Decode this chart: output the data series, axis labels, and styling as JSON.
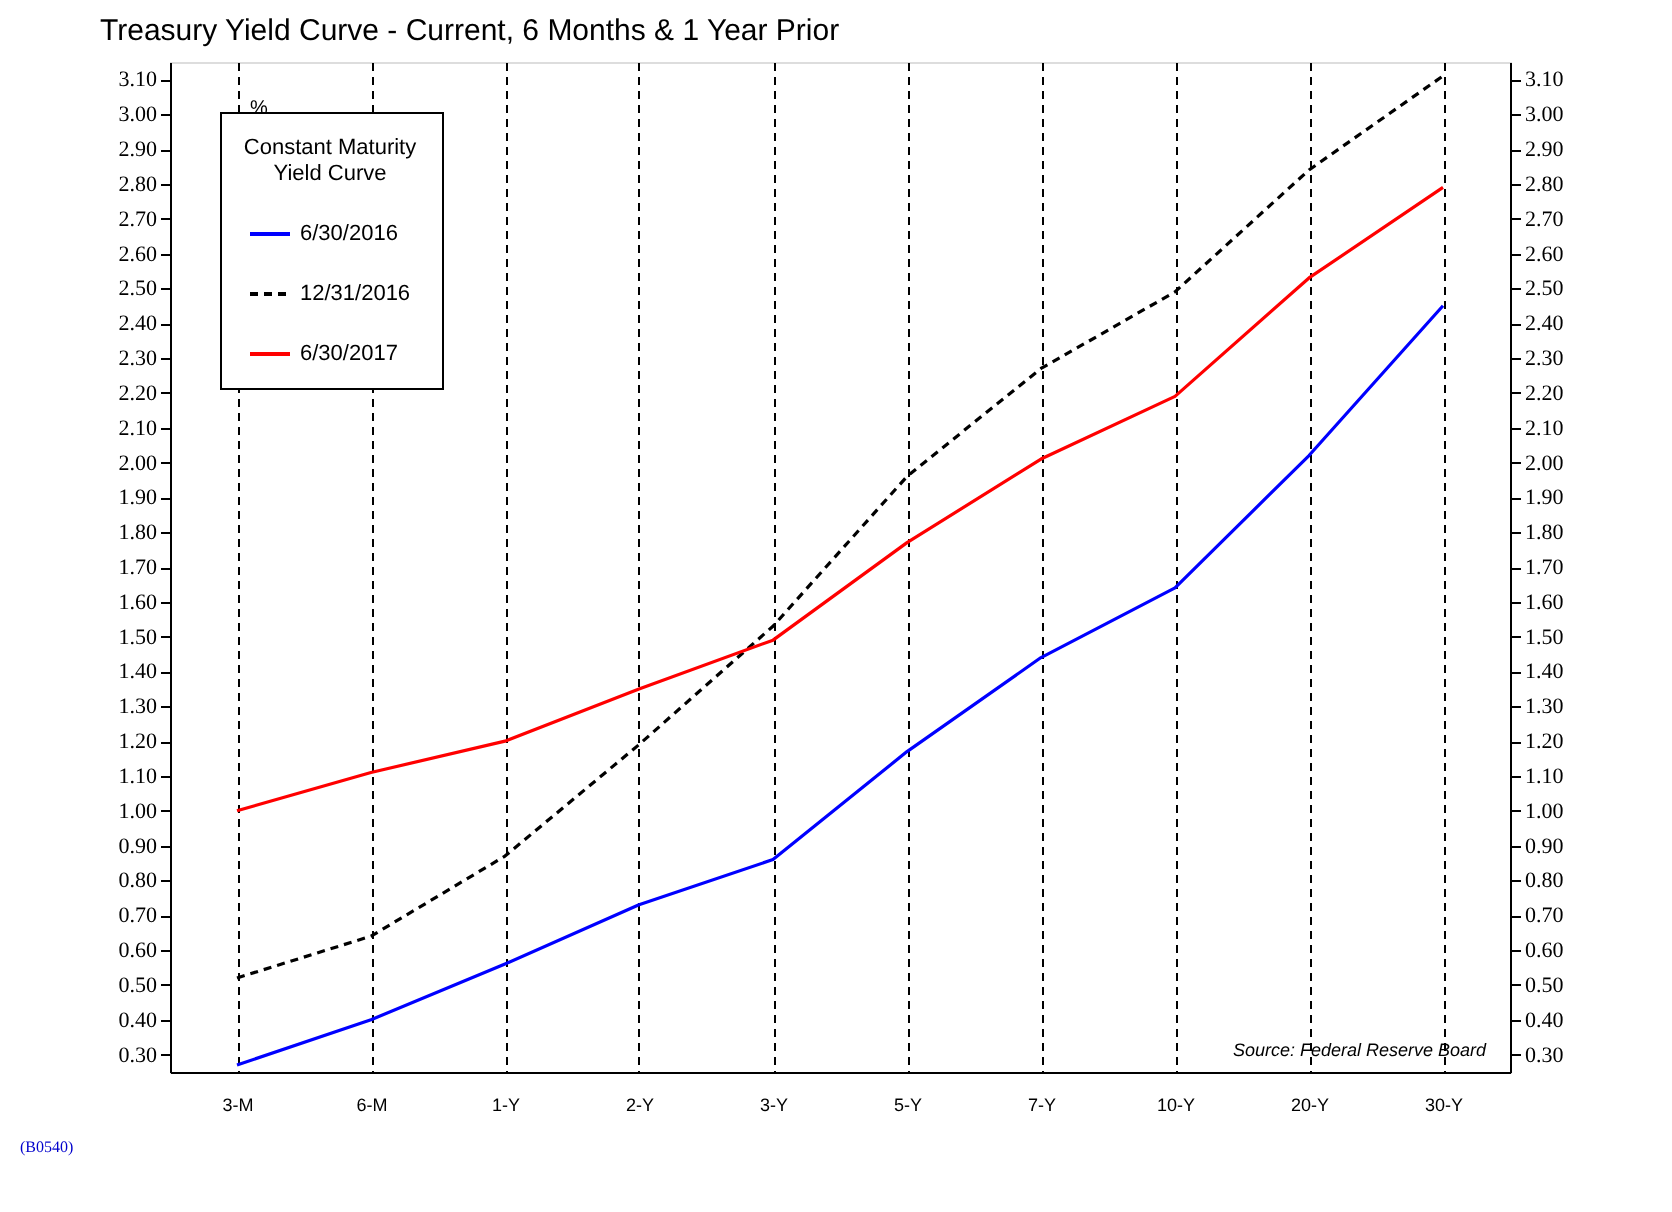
{
  "chart_data": {
    "type": "line",
    "title": "Treasury Yield Curve - Current, 6 Months & 1 Year Prior",
    "ylabel": "%",
    "legend_title": "Constant Maturity\nYield Curve",
    "legend": "top left",
    "grid": "x",
    "marker": "none",
    "categories": [
      "3-M",
      "6-M",
      "1-Y",
      "2-Y",
      "3-Y",
      "5-Y",
      "7-Y",
      "10-Y",
      "20-Y",
      "30-Y"
    ],
    "ylim": [
      0.25,
      3.15
    ],
    "yticks": [
      {
        "value": 0.3,
        "label": "0.30"
      },
      {
        "value": 0.4,
        "label": "0.40"
      },
      {
        "value": 0.5,
        "label": "0.50"
      },
      {
        "value": 0.6,
        "label": "0.60"
      },
      {
        "value": 0.7,
        "label": "0.70"
      },
      {
        "value": 0.8,
        "label": "0.80"
      },
      {
        "value": 0.9,
        "label": "0.90"
      },
      {
        "value": 1.0,
        "label": "1.00"
      },
      {
        "value": 1.1,
        "label": "1.10"
      },
      {
        "value": 1.2,
        "label": "1.20"
      },
      {
        "value": 1.3,
        "label": "1.30"
      },
      {
        "value": 1.4,
        "label": "1.40"
      },
      {
        "value": 1.5,
        "label": "1.50"
      },
      {
        "value": 1.6,
        "label": "1.60"
      },
      {
        "value": 1.7,
        "label": "1.70"
      },
      {
        "value": 1.8,
        "label": "1.80"
      },
      {
        "value": 1.9,
        "label": "1.90"
      },
      {
        "value": 2.0,
        "label": "2.00"
      },
      {
        "value": 2.1,
        "label": "2.10"
      },
      {
        "value": 2.2,
        "label": "2.20"
      },
      {
        "value": 2.3,
        "label": "2.30"
      },
      {
        "value": 2.4,
        "label": "2.40"
      },
      {
        "value": 2.5,
        "label": "2.50"
      },
      {
        "value": 2.6,
        "label": "2.60"
      },
      {
        "value": 2.7,
        "label": "2.70"
      },
      {
        "value": 2.8,
        "label": "2.80"
      },
      {
        "value": 2.9,
        "label": "2.90"
      },
      {
        "value": 3.0,
        "label": "3.00"
      },
      {
        "value": 3.1,
        "label": "3.10"
      }
    ],
    "y2lim": [
      0.25,
      3.15
    ],
    "y2ticks": [
      {
        "value": 0.3,
        "label": "0.30"
      },
      {
        "value": 0.4,
        "label": "0.40"
      },
      {
        "value": 0.5,
        "label": "0.50"
      },
      {
        "value": 0.6,
        "label": "0.60"
      },
      {
        "value": 0.7,
        "label": "0.70"
      },
      {
        "value": 0.8,
        "label": "0.80"
      },
      {
        "value": 0.9,
        "label": "0.90"
      },
      {
        "value": 1.0,
        "label": "1.00"
      },
      {
        "value": 1.1,
        "label": "1.10"
      },
      {
        "value": 1.2,
        "label": "1.20"
      },
      {
        "value": 1.3,
        "label": "1.30"
      },
      {
        "value": 1.4,
        "label": "1.40"
      },
      {
        "value": 1.5,
        "label": "1.50"
      },
      {
        "value": 1.6,
        "label": "1.60"
      },
      {
        "value": 1.7,
        "label": "1.70"
      },
      {
        "value": 1.8,
        "label": "1.80"
      },
      {
        "value": 1.9,
        "label": "1.90"
      },
      {
        "value": 2.0,
        "label": "2.00"
      },
      {
        "value": 2.1,
        "label": "2.10"
      },
      {
        "value": 2.2,
        "label": "2.20"
      },
      {
        "value": 2.3,
        "label": "2.30"
      },
      {
        "value": 2.4,
        "label": "2.40"
      },
      {
        "value": 2.5,
        "label": "2.50"
      },
      {
        "value": 2.6,
        "label": "2.60"
      },
      {
        "value": 2.7,
        "label": "2.70"
      },
      {
        "value": 2.8,
        "label": "2.80"
      },
      {
        "value": 2.9,
        "label": "2.90"
      },
      {
        "value": 3.0,
        "label": "3.00"
      },
      {
        "value": 3.1,
        "label": "3.10"
      }
    ],
    "series": [
      {
        "name": "6/30/2016",
        "color": "#0000ff",
        "line_style": "solid",
        "values": [
          0.27,
          0.4,
          0.56,
          0.73,
          0.86,
          1.17,
          1.44,
          1.64,
          2.02,
          2.45
        ]
      },
      {
        "name": "12/31/2016",
        "color": "#000000",
        "line_style": "dashed",
        "values": [
          0.52,
          0.64,
          0.87,
          1.19,
          1.53,
          1.96,
          2.27,
          2.49,
          2.84,
          3.11
        ]
      },
      {
        "name": "6/30/2017",
        "color": "#ff0000",
        "line_style": "solid",
        "values": [
          1.0,
          1.11,
          1.2,
          1.35,
          1.49,
          1.77,
          2.01,
          2.19,
          2.53,
          2.79
        ]
      }
    ],
    "annotations": [
      "Source: Federal Reserve Board",
      "(B0540)"
    ]
  }
}
